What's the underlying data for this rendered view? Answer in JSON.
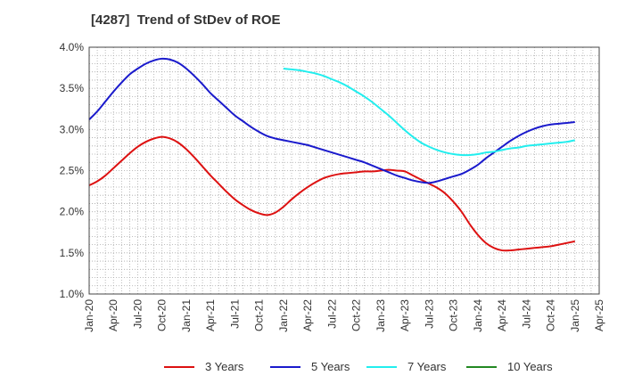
{
  "chart_data": {
    "type": "line",
    "title": "[4287]  Trend of StDev of ROE",
    "x_ticks": [
      "Jan-20",
      "Apr-20",
      "Jul-20",
      "Oct-20",
      "Jan-21",
      "Apr-21",
      "Jul-21",
      "Oct-21",
      "Jan-22",
      "Apr-22",
      "Jul-22",
      "Oct-22",
      "Jan-23",
      "Apr-23",
      "Jul-23",
      "Oct-23",
      "Jan-24",
      "Apr-24",
      "Jul-24",
      "Oct-24",
      "Jan-25",
      "Apr-25"
    ],
    "y_ticks": [
      "1.0%",
      "1.5%",
      "2.0%",
      "2.5%",
      "3.0%",
      "3.5%",
      "4.0%"
    ],
    "ylim": [
      1.0,
      4.0
    ],
    "y_unit": "%",
    "grid": true,
    "legend_position": "bottom",
    "series": [
      {
        "name": "3 Years",
        "color": "#dd1111",
        "x": [
          "Jan-20",
          "Feb-20",
          "Mar-20",
          "Apr-20",
          "May-20",
          "Jun-20",
          "Jul-20",
          "Aug-20",
          "Sep-20",
          "Oct-20",
          "Nov-20",
          "Dec-20",
          "Jan-21",
          "Feb-21",
          "Mar-21",
          "Apr-21",
          "May-21",
          "Jun-21",
          "Jul-21",
          "Aug-21",
          "Sep-21",
          "Oct-21",
          "Nov-21",
          "Dec-21",
          "Jan-22",
          "Feb-22",
          "Mar-22",
          "Apr-22",
          "May-22",
          "Jun-22",
          "Jul-22",
          "Aug-22",
          "Sep-22",
          "Oct-22",
          "Nov-22",
          "Dec-22",
          "Jan-23",
          "Feb-23",
          "Mar-23",
          "Apr-23",
          "May-23",
          "Jun-23",
          "Jul-23",
          "Aug-23",
          "Sep-23",
          "Oct-23",
          "Nov-23",
          "Dec-23",
          "Jan-24",
          "Feb-24",
          "Mar-24",
          "Apr-24",
          "May-24",
          "Jun-24",
          "Jul-24",
          "Aug-24",
          "Sep-24",
          "Oct-24",
          "Nov-24",
          "Dec-24",
          "Jan-25"
        ],
        "values": [
          2.32,
          2.37,
          2.44,
          2.53,
          2.62,
          2.71,
          2.79,
          2.85,
          2.89,
          2.91,
          2.89,
          2.84,
          2.76,
          2.66,
          2.55,
          2.44,
          2.34,
          2.24,
          2.15,
          2.08,
          2.02,
          1.98,
          1.96,
          1.99,
          2.06,
          2.15,
          2.23,
          2.3,
          2.36,
          2.41,
          2.44,
          2.46,
          2.47,
          2.48,
          2.49,
          2.49,
          2.5,
          2.51,
          2.5,
          2.49,
          2.44,
          2.39,
          2.34,
          2.29,
          2.22,
          2.12,
          2.0,
          1.85,
          1.72,
          1.62,
          1.56,
          1.53,
          1.53,
          1.54,
          1.55,
          1.56,
          1.57,
          1.58,
          1.6,
          1.62,
          1.64
        ]
      },
      {
        "name": "5 Years",
        "color": "#1a1acc",
        "x": [
          "Jan-20",
          "Feb-20",
          "Mar-20",
          "Apr-20",
          "May-20",
          "Jun-20",
          "Jul-20",
          "Aug-20",
          "Sep-20",
          "Oct-20",
          "Nov-20",
          "Dec-20",
          "Jan-21",
          "Feb-21",
          "Mar-21",
          "Apr-21",
          "May-21",
          "Jun-21",
          "Jul-21",
          "Aug-21",
          "Sep-21",
          "Oct-21",
          "Nov-21",
          "Dec-21",
          "Jan-22",
          "Feb-22",
          "Mar-22",
          "Apr-22",
          "May-22",
          "Jun-22",
          "Jul-22",
          "Aug-22",
          "Sep-22",
          "Oct-22",
          "Nov-22",
          "Dec-22",
          "Jan-23",
          "Feb-23",
          "Mar-23",
          "Apr-23",
          "May-23",
          "Jun-23",
          "Jul-23",
          "Aug-23",
          "Sep-23",
          "Oct-23",
          "Nov-23",
          "Dec-23",
          "Jan-24",
          "Feb-24",
          "Mar-24",
          "Apr-24",
          "May-24",
          "Jun-24",
          "Jul-24",
          "Aug-24",
          "Sep-24",
          "Oct-24",
          "Nov-24",
          "Dec-24",
          "Jan-25"
        ],
        "values": [
          3.12,
          3.22,
          3.34,
          3.46,
          3.57,
          3.67,
          3.74,
          3.8,
          3.84,
          3.86,
          3.85,
          3.81,
          3.74,
          3.65,
          3.55,
          3.44,
          3.35,
          3.26,
          3.17,
          3.1,
          3.03,
          2.97,
          2.92,
          2.89,
          2.87,
          2.85,
          2.83,
          2.81,
          2.78,
          2.75,
          2.72,
          2.69,
          2.66,
          2.63,
          2.6,
          2.56,
          2.52,
          2.48,
          2.44,
          2.41,
          2.38,
          2.36,
          2.35,
          2.37,
          2.4,
          2.43,
          2.46,
          2.51,
          2.57,
          2.65,
          2.72,
          2.79,
          2.86,
          2.92,
          2.97,
          3.01,
          3.04,
          3.06,
          3.07,
          3.08,
          3.09
        ]
      },
      {
        "name": "7 Years",
        "color": "#22eeee",
        "x": [
          "Jan-22",
          "Feb-22",
          "Mar-22",
          "Apr-22",
          "May-22",
          "Jun-22",
          "Jul-22",
          "Aug-22",
          "Sep-22",
          "Oct-22",
          "Nov-22",
          "Dec-22",
          "Jan-23",
          "Feb-23",
          "Mar-23",
          "Apr-23",
          "May-23",
          "Jun-23",
          "Jul-23",
          "Aug-23",
          "Sep-23",
          "Oct-23",
          "Nov-23",
          "Dec-23",
          "Jan-24",
          "Feb-24",
          "Mar-24",
          "Apr-24",
          "May-24",
          "Jun-24",
          "Jul-24",
          "Aug-24",
          "Sep-24",
          "Oct-24",
          "Nov-24",
          "Dec-24",
          "Jan-25"
        ],
        "values": [
          3.74,
          3.73,
          3.72,
          3.7,
          3.68,
          3.65,
          3.61,
          3.57,
          3.52,
          3.46,
          3.4,
          3.33,
          3.25,
          3.17,
          3.08,
          2.99,
          2.91,
          2.84,
          2.79,
          2.75,
          2.72,
          2.7,
          2.69,
          2.69,
          2.7,
          2.72,
          2.73,
          2.75,
          2.77,
          2.78,
          2.8,
          2.81,
          2.82,
          2.83,
          2.84,
          2.85,
          2.87
        ]
      },
      {
        "name": "10 Years",
        "color": "#228822",
        "x": [],
        "values": []
      }
    ]
  }
}
